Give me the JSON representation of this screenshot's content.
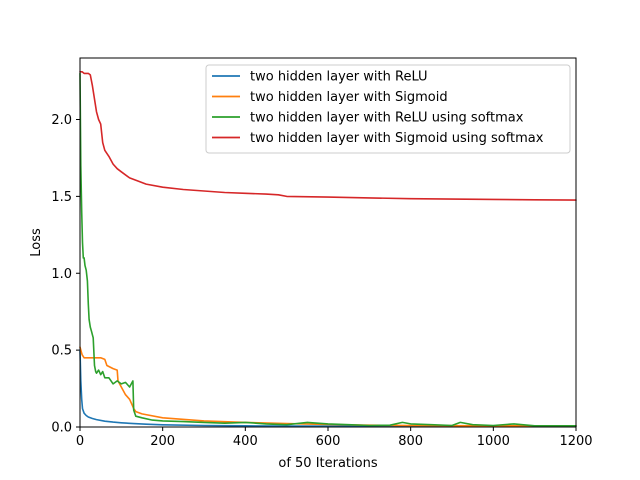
{
  "chart_data": {
    "type": "line",
    "title": "",
    "xlabel": "of 50 Iterations",
    "ylabel": "Loss",
    "xlim": [
      0,
      1200
    ],
    "ylim": [
      0,
      2.4
    ],
    "xticks": [
      0,
      200,
      400,
      600,
      800,
      1000,
      1200
    ],
    "xtick_labels": [
      "0",
      "200",
      "400",
      "600",
      "800",
      "1000",
      "1200"
    ],
    "yticks": [
      0.0,
      0.5,
      1.0,
      1.5,
      2.0
    ],
    "ytick_labels": [
      "0.0",
      "0.5",
      "1.0",
      "1.5",
      "2.0"
    ],
    "grid": false,
    "legend_position": "top-right",
    "series": [
      {
        "name": "two hidden layer with ReLU",
        "color": "#1f77b4",
        "x": [
          0,
          2,
          4,
          6,
          10,
          15,
          20,
          30,
          40,
          60,
          80,
          100,
          130,
          160,
          200,
          300,
          400,
          500,
          700,
          900,
          1200
        ],
        "y": [
          0.5,
          0.3,
          0.18,
          0.12,
          0.09,
          0.075,
          0.065,
          0.055,
          0.048,
          0.038,
          0.032,
          0.027,
          0.022,
          0.018,
          0.014,
          0.01,
          0.008,
          0.006,
          0.005,
          0.004,
          0.004
        ]
      },
      {
        "name": "two hidden layer with Sigmoid",
        "color": "#ff7f0e",
        "x": [
          0,
          5,
          10,
          20,
          40,
          50,
          60,
          65,
          80,
          90,
          92,
          100,
          110,
          120,
          125,
          130,
          135,
          150,
          200,
          300,
          400,
          500,
          600,
          700,
          800,
          1000,
          1200
        ],
        "y": [
          0.52,
          0.47,
          0.45,
          0.45,
          0.45,
          0.45,
          0.44,
          0.4,
          0.38,
          0.37,
          0.3,
          0.26,
          0.21,
          0.18,
          0.15,
          0.12,
          0.1,
          0.085,
          0.06,
          0.04,
          0.03,
          0.022,
          0.016,
          0.012,
          0.01,
          0.008,
          0.007
        ]
      },
      {
        "name": "two hidden layer with ReLU using softmax",
        "color": "#2ca02c",
        "x": [
          0,
          2,
          4,
          6,
          8,
          10,
          12,
          15,
          18,
          20,
          22,
          25,
          28,
          30,
          32,
          35,
          38,
          40,
          45,
          50,
          55,
          60,
          70,
          80,
          90,
          100,
          110,
          120,
          128,
          130,
          135,
          150,
          175,
          200,
          250,
          300,
          350,
          400,
          450,
          500,
          550,
          600,
          650,
          700,
          750,
          780,
          800,
          850,
          900,
          920,
          950,
          1000,
          1050,
          1100,
          1200
        ],
        "y": [
          2.3,
          1.7,
          1.4,
          1.2,
          1.1,
          1.1,
          1.05,
          1.02,
          0.95,
          0.8,
          0.7,
          0.65,
          0.62,
          0.6,
          0.58,
          0.4,
          0.36,
          0.35,
          0.37,
          0.34,
          0.36,
          0.32,
          0.32,
          0.28,
          0.3,
          0.28,
          0.29,
          0.26,
          0.3,
          0.11,
          0.07,
          0.06,
          0.045,
          0.04,
          0.035,
          0.03,
          0.025,
          0.03,
          0.02,
          0.015,
          0.03,
          0.02,
          0.015,
          0.01,
          0.012,
          0.03,
          0.02,
          0.015,
          0.01,
          0.03,
          0.015,
          0.01,
          0.02,
          0.008,
          0.008
        ]
      },
      {
        "name": "two hidden layer with Sigmoid using softmax",
        "color": "#d62728",
        "x": [
          0,
          5,
          10,
          20,
          25,
          30,
          40,
          45,
          50,
          55,
          60,
          70,
          80,
          90,
          100,
          120,
          140,
          160,
          200,
          250,
          300,
          350,
          400,
          450,
          480,
          500,
          600,
          700,
          800,
          900,
          1000,
          1100,
          1200
        ],
        "y": [
          2.31,
          2.31,
          2.3,
          2.3,
          2.29,
          2.22,
          2.05,
          2.0,
          1.97,
          1.85,
          1.8,
          1.76,
          1.71,
          1.68,
          1.66,
          1.62,
          1.6,
          1.58,
          1.56,
          1.545,
          1.535,
          1.525,
          1.52,
          1.515,
          1.51,
          1.5,
          1.495,
          1.49,
          1.485,
          1.482,
          1.48,
          1.478,
          1.476
        ]
      }
    ]
  }
}
